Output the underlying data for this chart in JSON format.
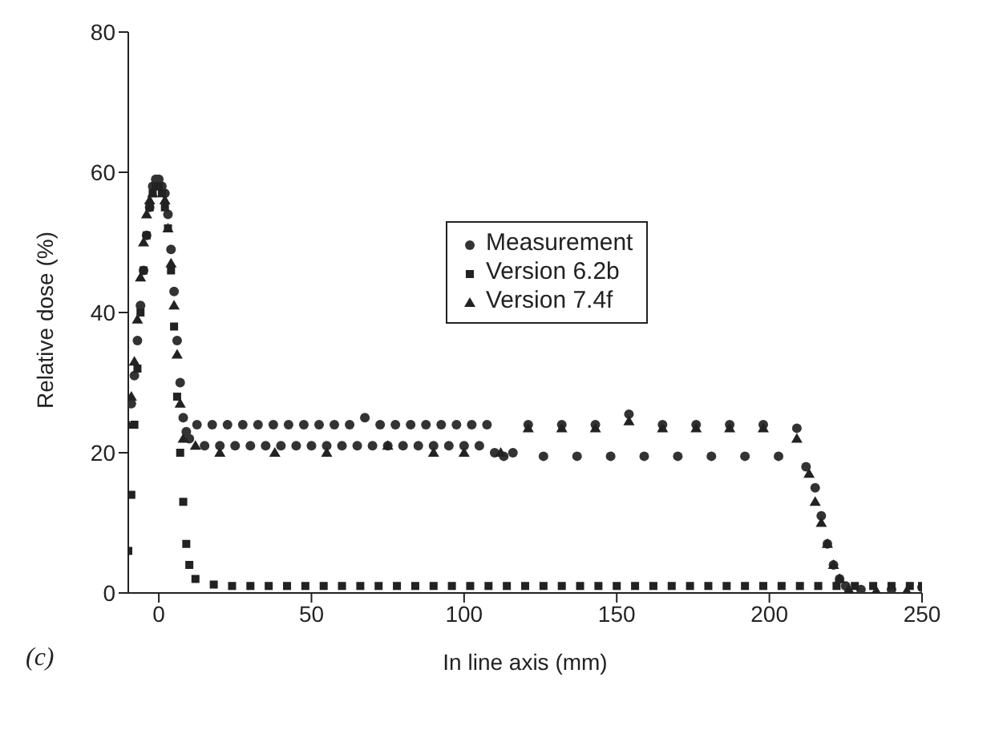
{
  "chart_data": {
    "type": "scatter",
    "xlabel": "In line axis (mm)",
    "ylabel": "Relative dose (%)",
    "annotations": [
      "(c)"
    ],
    "xlim": [
      -10,
      250
    ],
    "xticks": [
      0,
      50,
      100,
      150,
      200,
      250
    ],
    "ylim": [
      0,
      80
    ],
    "yticks": [
      0,
      20,
      40,
      60,
      80
    ],
    "grid": false,
    "legend": "top",
    "series": [
      {
        "name": "Measurement",
        "color": "#333333",
        "marker": "circle",
        "x": [
          -9,
          -8,
          -7,
          -6,
          -5,
          -4,
          -3,
          -2,
          -1,
          0,
          1,
          2,
          3,
          4,
          5,
          6,
          7,
          8,
          9,
          10,
          12.5,
          15,
          17.5,
          20,
          22.5,
          25,
          27.5,
          30,
          32.5,
          35,
          37.5,
          40,
          42.5,
          45,
          47.5,
          50,
          52.5,
          55,
          57.5,
          60,
          62.5,
          65,
          67.5,
          70,
          72.5,
          75,
          77.5,
          80,
          82.5,
          85,
          87.5,
          90,
          92.5,
          95,
          97.5,
          100,
          102.5,
          105,
          107.5,
          110,
          113,
          116,
          121,
          126,
          132,
          137,
          143,
          148,
          154,
          159,
          165,
          170,
          176,
          181,
          187,
          192,
          198,
          203,
          209,
          212,
          215,
          217,
          219,
          221,
          223,
          225,
          230,
          240,
          250
        ],
        "values": [
          27,
          31,
          36,
          41,
          46,
          51,
          55,
          58,
          59,
          59,
          58,
          57,
          54,
          49,
          43,
          36,
          30,
          25,
          23,
          22,
          24,
          21,
          24,
          21,
          24,
          21,
          24,
          21,
          24,
          21,
          24,
          21,
          24,
          21,
          24,
          21,
          24,
          21,
          24,
          21,
          24,
          21,
          25,
          21,
          24,
          21,
          24,
          21,
          24,
          21,
          24,
          21,
          24,
          21,
          24,
          21,
          24,
          21,
          24,
          20,
          19.5,
          20,
          24,
          19.5,
          24,
          19.5,
          24,
          19.5,
          25.5,
          19.5,
          24,
          19.5,
          24,
          19.5,
          24,
          19.5,
          24,
          19.5,
          23.5,
          18,
          15,
          11,
          7,
          4,
          2,
          1,
          0.5,
          0.5,
          0.8
        ]
      },
      {
        "name": "Version 6.2b",
        "color": "#222222",
        "marker": "square",
        "x": [
          -10,
          -9,
          -8,
          -7,
          -6,
          -5,
          -4,
          -3,
          -2,
          -1,
          0,
          1,
          2,
          3,
          4,
          5,
          6,
          7,
          8,
          9,
          10,
          12,
          18,
          24,
          30,
          36,
          42,
          48,
          54,
          60,
          66,
          72,
          78,
          84,
          90,
          96,
          102,
          108,
          114,
          120,
          126,
          132,
          138,
          144,
          150,
          156,
          162,
          168,
          174,
          180,
          186,
          192,
          198,
          204,
          210,
          216,
          222,
          228,
          234,
          240,
          246,
          250
        ],
        "values": [
          6,
          14,
          24,
          32,
          40,
          46,
          51,
          55,
          57,
          58,
          58,
          57,
          55,
          52,
          46,
          38,
          28,
          20,
          13,
          7,
          4,
          2,
          1.2,
          1,
          1,
          1,
          1,
          1,
          1,
          1,
          1,
          1,
          1,
          1,
          1,
          1,
          1,
          1,
          1,
          1,
          1,
          1,
          1,
          1,
          1,
          1,
          1,
          1,
          1,
          1,
          1,
          1,
          1,
          1,
          1,
          1,
          1,
          1,
          1,
          1,
          1,
          1
        ]
      },
      {
        "name": "Version 7.4f",
        "color": "#222222",
        "marker": "triangle",
        "x": [
          -10,
          -9,
          -8,
          -7,
          -6,
          -5,
          -4,
          -3,
          -2,
          2,
          3,
          4,
          5,
          6,
          7,
          8,
          12,
          20,
          38,
          55,
          75,
          90,
          100,
          112,
          121,
          132,
          143,
          154,
          165,
          176,
          187,
          198,
          209,
          213,
          215,
          217,
          219,
          221,
          223,
          226,
          235,
          245
        ],
        "values": [
          24,
          28,
          33,
          39,
          45,
          50,
          54,
          56,
          57,
          56,
          52,
          47,
          41,
          34,
          27,
          22,
          21,
          20,
          20,
          20,
          21,
          20,
          20,
          20,
          23.5,
          23.5,
          23.5,
          24.5,
          23.5,
          23.5,
          23.5,
          23.5,
          22,
          17,
          13,
          10,
          7,
          4,
          2,
          0.5,
          0.3,
          0.3
        ]
      }
    ]
  }
}
